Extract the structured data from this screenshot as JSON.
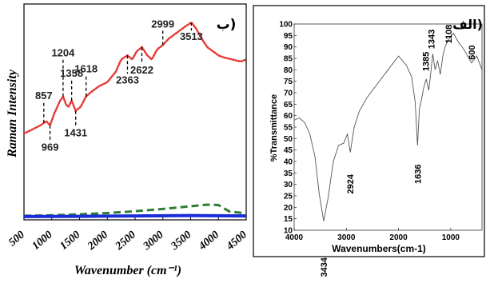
{
  "chart_data": [
    {
      "type": "line",
      "panel_label": "ب)",
      "xlabel": "Wavenumber (cm⁻¹)",
      "ylabel": "Raman Intensity",
      "xlim": [
        500,
        4500
      ],
      "x_ticks": [
        "500",
        "1000",
        "1500",
        "2000",
        "2500",
        "3000",
        "3500",
        "4000",
        "4500"
      ],
      "grid": false,
      "series": [
        {
          "color": "#e53935",
          "style": "dotted",
          "x": [
            500,
            650,
            800,
            900,
            969,
            1050,
            1150,
            1204,
            1260,
            1300,
            1358,
            1431,
            1520,
            1618,
            1700,
            1850,
            2000,
            2150,
            2250,
            2363,
            2450,
            2530,
            2622,
            2720,
            2800,
            2900,
            2999,
            3100,
            3250,
            3400,
            3513,
            3600,
            3700,
            3800,
            3900,
            4000,
            4100,
            4250,
            4400,
            4500
          ],
          "y": [
            42,
            44,
            46,
            48,
            46,
            52,
            58,
            60,
            56,
            55,
            58,
            53,
            55,
            60,
            62,
            65,
            67,
            72,
            78,
            80,
            78,
            82,
            84,
            80,
            78,
            83,
            85,
            88,
            91,
            94,
            96,
            93,
            88,
            84,
            82,
            80,
            79,
            78,
            77,
            78
          ]
        },
        {
          "color": "#2e7d32",
          "style": "dashed",
          "x": [
            500,
            1000,
            1500,
            2000,
            2500,
            3000,
            3500,
            3800,
            4000,
            4200,
            4500
          ],
          "y": [
            2.0,
            2.2,
            2.7,
            3.3,
            4.2,
            5.3,
            6.6,
            7.4,
            7.2,
            4.0,
            3.2
          ]
        },
        {
          "color": "#1a2bd8",
          "style": "solid",
          "x": [
            500,
            1500,
            2500,
            3500,
            4500
          ],
          "y": [
            1.6,
            1.7,
            1.9,
            2.1,
            1.9
          ]
        }
      ],
      "annotations": [
        {
          "text": "857",
          "x": 857
        },
        {
          "text": "969",
          "x": 969
        },
        {
          "text": "1204",
          "x": 1204
        },
        {
          "text": "1358",
          "x": 1358
        },
        {
          "text": "1431",
          "x": 1431
        },
        {
          "text": "1618",
          "x": 1618
        },
        {
          "text": "2363",
          "x": 2363
        },
        {
          "text": "2622",
          "x": 2622
        },
        {
          "text": "2999",
          "x": 2999
        },
        {
          "text": "3513",
          "x": 3513
        }
      ]
    },
    {
      "type": "line",
      "panel_label": "الف)",
      "xlabel": "Wavenumbers(cm-1)",
      "ylabel": "%Transmittance",
      "xlim": [
        4000,
        400
      ],
      "ylim": [
        10,
        100
      ],
      "x_ticks": [
        "4000",
        "3000",
        "2000",
        "1000"
      ],
      "y_ticks": [
        "100",
        "95",
        "90",
        "85",
        "80",
        "75",
        "70",
        "65",
        "60",
        "55",
        "50",
        "45",
        "40",
        "35",
        "30",
        "25",
        "20",
        "15",
        "10"
      ],
      "grid": false,
      "series": [
        {
          "color": "#555555",
          "style": "solid",
          "x": [
            4000,
            3900,
            3800,
            3700,
            3600,
            3520,
            3434,
            3350,
            3250,
            3150,
            3050,
            2980,
            2924,
            2850,
            2750,
            2600,
            2400,
            2200,
            2000,
            1850,
            1750,
            1680,
            1636,
            1600,
            1560,
            1520,
            1470,
            1420,
            1385,
            1343,
            1300,
            1250,
            1200,
            1150,
            1108,
            1050,
            950,
            850,
            750,
            650,
            600,
            500,
            400
          ],
          "y": [
            58,
            59,
            57,
            52,
            42,
            26,
            14,
            24,
            40,
            47,
            48,
            52,
            44,
            55,
            62,
            68,
            74,
            80,
            86,
            82,
            77,
            66,
            47,
            63,
            67,
            72,
            76,
            71,
            78,
            87,
            80,
            84,
            78,
            86,
            90,
            93,
            96,
            92,
            89,
            85,
            83,
            86,
            80
          ]
        }
      ],
      "annotations": [
        {
          "text": "3434",
          "x": 3434
        },
        {
          "text": "2924",
          "x": 2924
        },
        {
          "text": "1636",
          "x": 1636
        },
        {
          "text": "1385",
          "x": 1385
        },
        {
          "text": "1343",
          "x": 1343
        },
        {
          "text": "1108",
          "x": 1108
        },
        {
          "text": "600",
          "x": 600
        }
      ]
    }
  ]
}
